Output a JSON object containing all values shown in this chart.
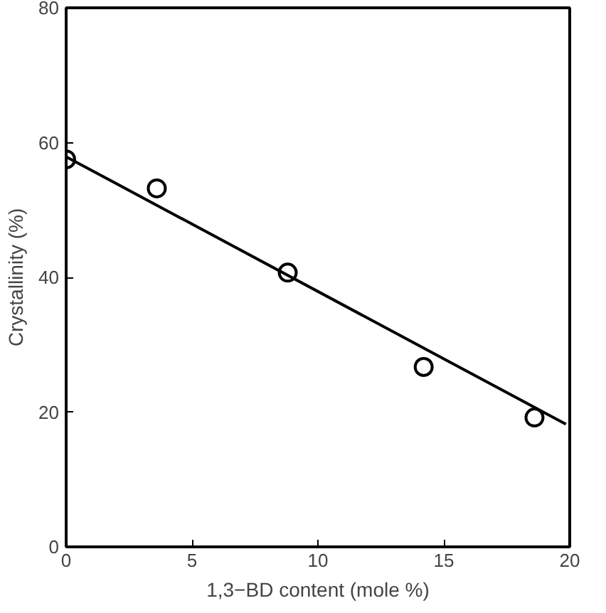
{
  "chart_data": {
    "type": "scatter",
    "xlabel": "1,3−BD content (mole %)",
    "ylabel": "Crystallinity (%)",
    "xlim": [
      0,
      20
    ],
    "ylim": [
      0,
      80
    ],
    "xticks": [
      0,
      5,
      10,
      15,
      20
    ],
    "yticks": [
      0,
      20,
      40,
      60,
      80
    ],
    "grid": false,
    "series": [
      {
        "color": "#000000",
        "marker": "circle",
        "x": [
          0,
          3.6,
          8.8,
          14.2,
          18.6
        ],
        "values": [
          57.5,
          53.2,
          40.7,
          26.7,
          19.2
        ]
      },
      {
        "type": "line",
        "color": "#000000",
        "x": [
          0,
          19.85
        ],
        "values": [
          57.9,
          18.2
        ]
      }
    ]
  }
}
